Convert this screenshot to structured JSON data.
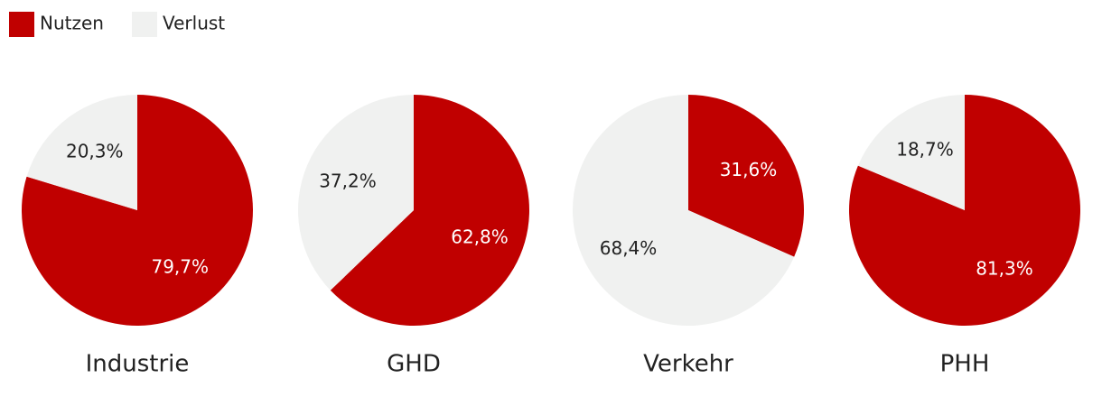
{
  "legend": {
    "series": [
      {
        "name": "Nutzen",
        "color": "#c00000"
      },
      {
        "name": "Verlust",
        "color": "#f0f1f0"
      }
    ]
  },
  "chart_data": [
    {
      "type": "pie",
      "title": "Industrie",
      "values": [
        79.7,
        20.3
      ],
      "value_labels": [
        "79,7%",
        "20,3%"
      ]
    },
    {
      "type": "pie",
      "title": "GHD",
      "values": [
        62.8,
        37.2
      ],
      "value_labels": [
        "62,8%",
        "37,2%"
      ]
    },
    {
      "type": "pie",
      "title": "Verkehr",
      "values": [
        31.6,
        68.4
      ],
      "value_labels": [
        "31,6%",
        "68,4%"
      ]
    },
    {
      "type": "pie",
      "title": "PHH",
      "values": [
        81.3,
        18.7
      ],
      "value_labels": [
        "81,3%",
        "18,7%"
      ]
    }
  ]
}
